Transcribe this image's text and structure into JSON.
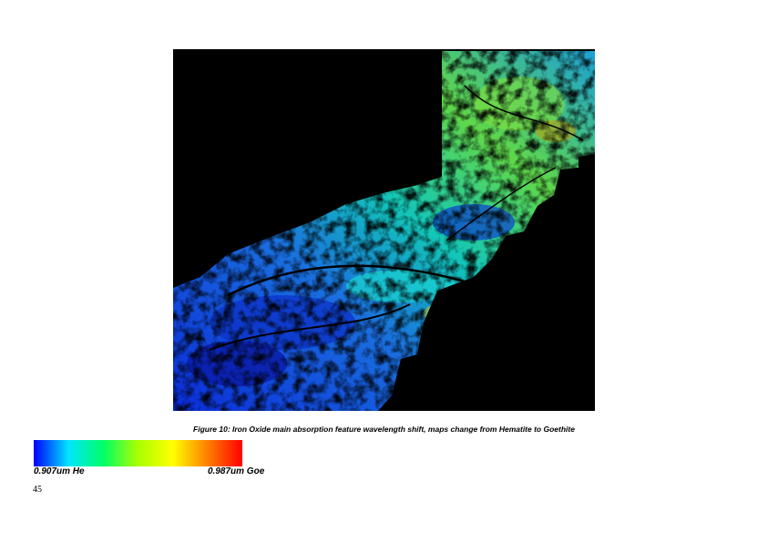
{
  "figure": {
    "caption": "Figure 10: Iron Oxide main absorption feature wavelength shift, maps change from Hematite to Goethite"
  },
  "colorbar": {
    "low_label": "0.907um He",
    "high_label": "0.987um Goe",
    "colors": [
      "#0000ff",
      "#00e5ff",
      "#00ff66",
      "#aaff00",
      "#ffff00",
      "#ff7f00",
      "#ff0000"
    ]
  },
  "page": {
    "number": "45"
  }
}
